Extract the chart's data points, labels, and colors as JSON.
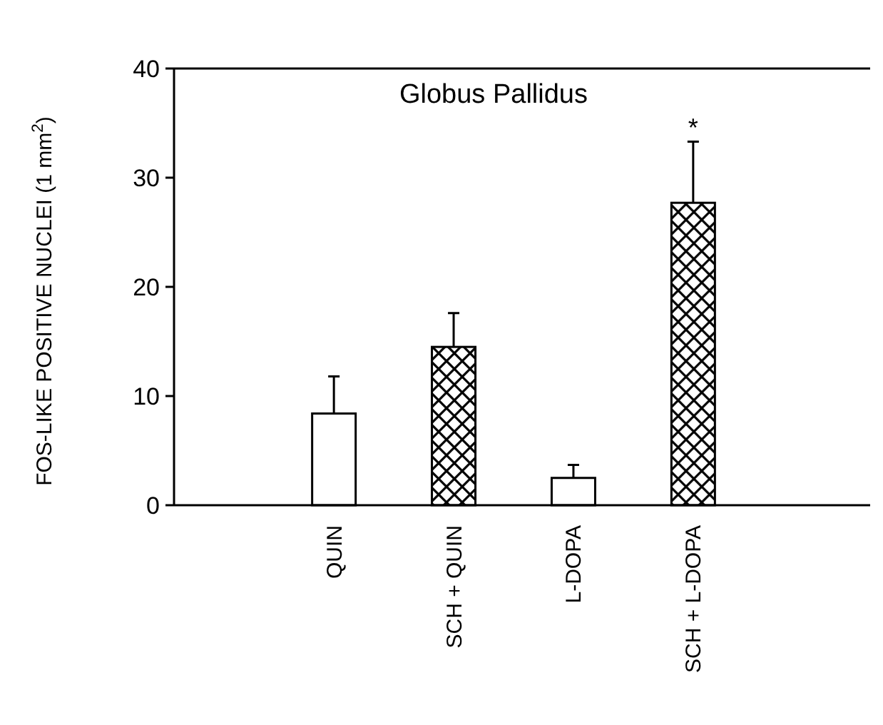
{
  "chart_data": {
    "type": "bar",
    "title": "Globus Pallidus",
    "ylabel": "FOS-LIKE POSITIVE NUCLEI (1 mm$^{2}$)",
    "categories": [
      "QUIN",
      "SCH + QUIN",
      "L-DOPA",
      "SCH + L-DOPA"
    ],
    "values": [
      8.4,
      14.5,
      2.5,
      27.7
    ],
    "colors": [
      "#ffffff",
      "#000000",
      "#ffffff",
      "#000000"
    ],
    "errors": [
      [
        8.4,
        11.8
      ],
      [
        14.5,
        17.6
      ],
      [
        2.5,
        3.7
      ],
      [
        27.7,
        33.3
      ]
    ],
    "ylim": [
      0,
      40
    ],
    "yticks": [
      0,
      10,
      20,
      30,
      40
    ],
    "annotations": [
      "*"
    ],
    "grid": false
  }
}
